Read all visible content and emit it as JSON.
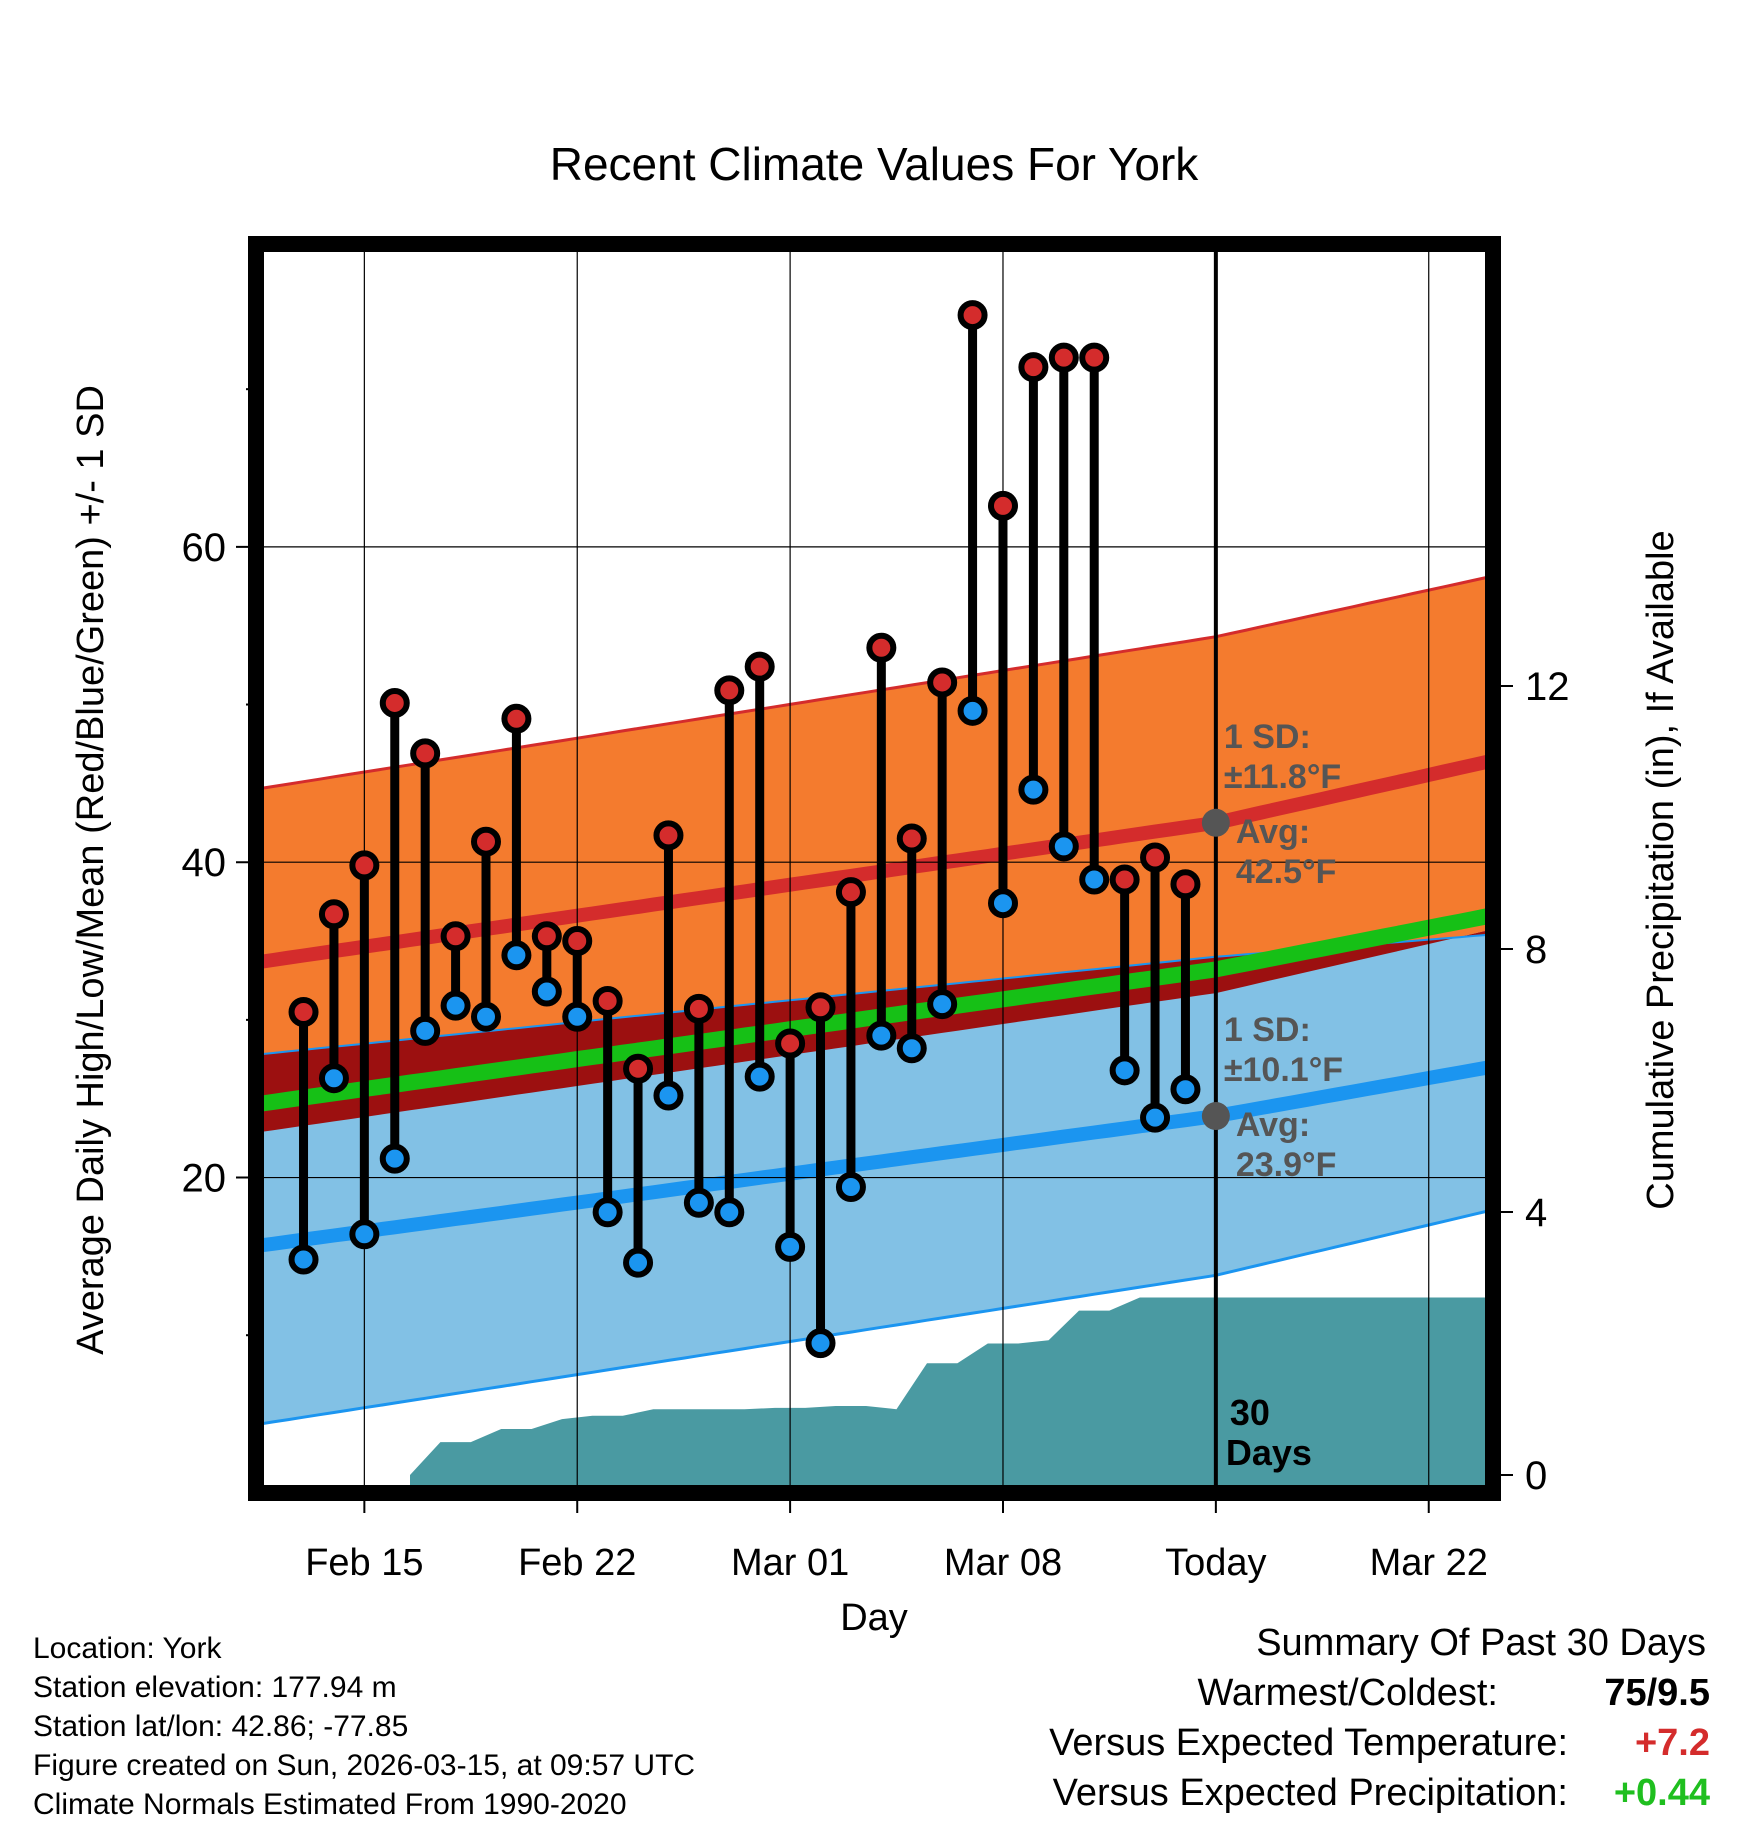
{
  "chart_data": {
    "type": "line",
    "title": "Recent Climate Values For York",
    "xlabel": "Day",
    "ylabel_left": "Average Daily High/Low/Mean (Red/Blue/Green) +/- 1 SD",
    "ylabel_right": "Cumulative Precipitation (in), If Available",
    "x_ticks": [
      {
        "label": "Feb 15",
        "day": 2
      },
      {
        "label": "Feb 22",
        "day": 9
      },
      {
        "label": "Mar 01",
        "day": 16
      },
      {
        "label": "Mar 08",
        "day": 23
      },
      {
        "label": "Today",
        "day": 30
      },
      {
        "label": "Mar 22",
        "day": 37
      }
    ],
    "y_ticks_left": [
      "20",
      "40",
      "60"
    ],
    "y_ticks_right": [
      "0",
      "4",
      "8",
      "12"
    ],
    "x_range": [
      -1.3,
      38.85
    ],
    "ylim_left": [
      0.5,
      78.7
    ],
    "ylim_right": [
      0,
      18.6
    ],
    "today_day": 30,
    "normals": {
      "days": [
        -1,
        30,
        39
      ],
      "high_avg": [
        33.8,
        42.5,
        46.4
      ],
      "high_upper": [
        44.8,
        54.3,
        58.1
      ],
      "low_avg": [
        15.8,
        23.9,
        27.0
      ],
      "low_lower": [
        4.5,
        13.8,
        17.9
      ],
      "low_upper": [
        27.9,
        34.0,
        35.4
      ],
      "high_lower": [
        23.0,
        31.7,
        35.7
      ],
      "mean_avg": [
        24.8,
        33.2,
        36.6
      ]
    },
    "series": [
      {
        "name": "Daily High",
        "color": "#d42c2c",
        "values": [
          30.5,
          36.7,
          39.8,
          50.1,
          46.9,
          35.3,
          41.3,
          49.1,
          35.3,
          35.0,
          31.2,
          26.9,
          41.7,
          30.7,
          50.9,
          52.4,
          28.5,
          30.8,
          38.1,
          53.6,
          41.5,
          51.4,
          74.7,
          62.6,
          71.4,
          72.0,
          72.0,
          38.9,
          40.3,
          38.6
        ]
      },
      {
        "name": "Daily Low",
        "color": "#1b95f0",
        "values": [
          14.8,
          26.3,
          16.4,
          21.2,
          29.3,
          30.9,
          30.2,
          34.1,
          31.8,
          30.2,
          17.8,
          14.6,
          25.2,
          18.4,
          17.8,
          26.4,
          15.6,
          9.5,
          19.4,
          29.0,
          28.2,
          31.0,
          49.6,
          37.4,
          44.6,
          41.0,
          38.9,
          26.8,
          23.8,
          25.6
        ]
      }
    ],
    "precip": {
      "name": "Cumulative Precipitation",
      "color": "#4a9aa2",
      "days": [
        3.5,
        4.5,
        5.5,
        6.5,
        7.5,
        8.5,
        9.5,
        10.5,
        11.5,
        12.5,
        13.5,
        14.5,
        15.5,
        16.5,
        17.5,
        18.5,
        19.5,
        20.5,
        21.5,
        22.5,
        23.5,
        24.5,
        25.5,
        26.5,
        27.5,
        28.5,
        29.5,
        30.5,
        38.85
      ],
      "values": [
        0.0,
        0.5,
        0.5,
        0.7,
        0.7,
        0.85,
        0.9,
        0.9,
        1.0,
        1.0,
        1.0,
        1.0,
        1.02,
        1.02,
        1.05,
        1.05,
        1.0,
        1.7,
        1.7,
        2.0,
        2.0,
        2.05,
        2.5,
        2.5,
        2.7,
        2.7,
        2.7,
        2.7,
        2.7
      ]
    },
    "annotations": {
      "high_sd_label": "1 SD:",
      "high_sd_value": "±11.8°F",
      "high_avg_label": "Avg:",
      "high_avg_value": "42.5°F",
      "low_sd_label": "1 SD:",
      "low_sd_value": "±10.1°F",
      "low_avg_label": "Avg:",
      "low_avg_value": "23.9°F",
      "days_num": "30",
      "days_label": "Days"
    }
  },
  "info": {
    "location": "Location: York",
    "elevation": "Station elevation: 177.94 m",
    "latlon": "Station lat/lon: 42.86; -77.85",
    "created": "Figure created on Sun, 2026-03-15, at 09:57 UTC",
    "normals": "Climate Normals Estimated From 1990-2020"
  },
  "summary": {
    "title": "Summary Of Past 30 Days",
    "warmest_label": "Warmest/Coldest:",
    "warmest_value": "75/9.5",
    "temp_label": "Versus Expected Temperature:",
    "temp_value": "+7.2",
    "temp_color": "#d42c2c",
    "precip_label": "Versus Expected Precipitation:",
    "precip_value": "+0.44",
    "precip_color": "#1fbf1f"
  },
  "colors": {
    "high_band": "#f47b2e",
    "high_line": "#d42c2c",
    "low_band": "#82c1e5",
    "low_line": "#1b95f0",
    "overlap_band": "#9c1010",
    "mean_line": "#16c016",
    "annotation": "#555555"
  }
}
